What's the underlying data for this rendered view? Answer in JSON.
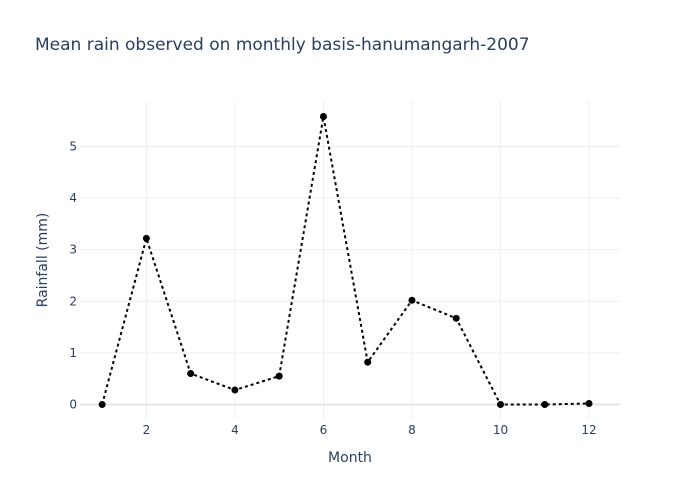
{
  "chart_data": {
    "type": "line",
    "title": "Mean rain observed on monthly basis-hanumangarh-2007",
    "xlabel": "Month",
    "ylabel": "Rainfall (mm)",
    "xlim": [
      0.5,
      12.7
    ],
    "ylim": [
      -0.3,
      5.9
    ],
    "x_ticks": [
      2,
      4,
      6,
      8,
      10,
      12
    ],
    "y_ticks": [
      0,
      1,
      2,
      3,
      4,
      5
    ],
    "grid": true,
    "line_style": "dotted",
    "marker": "circle",
    "series_color": "#000000",
    "series": [
      {
        "x": [
          1,
          2,
          3,
          4,
          5,
          6,
          7,
          8,
          9,
          10,
          11,
          12
        ],
        "values": [
          0,
          3.22,
          0.6,
          0.28,
          0.55,
          5.58,
          0.82,
          2.02,
          1.67,
          0,
          0,
          0.02
        ]
      }
    ]
  }
}
